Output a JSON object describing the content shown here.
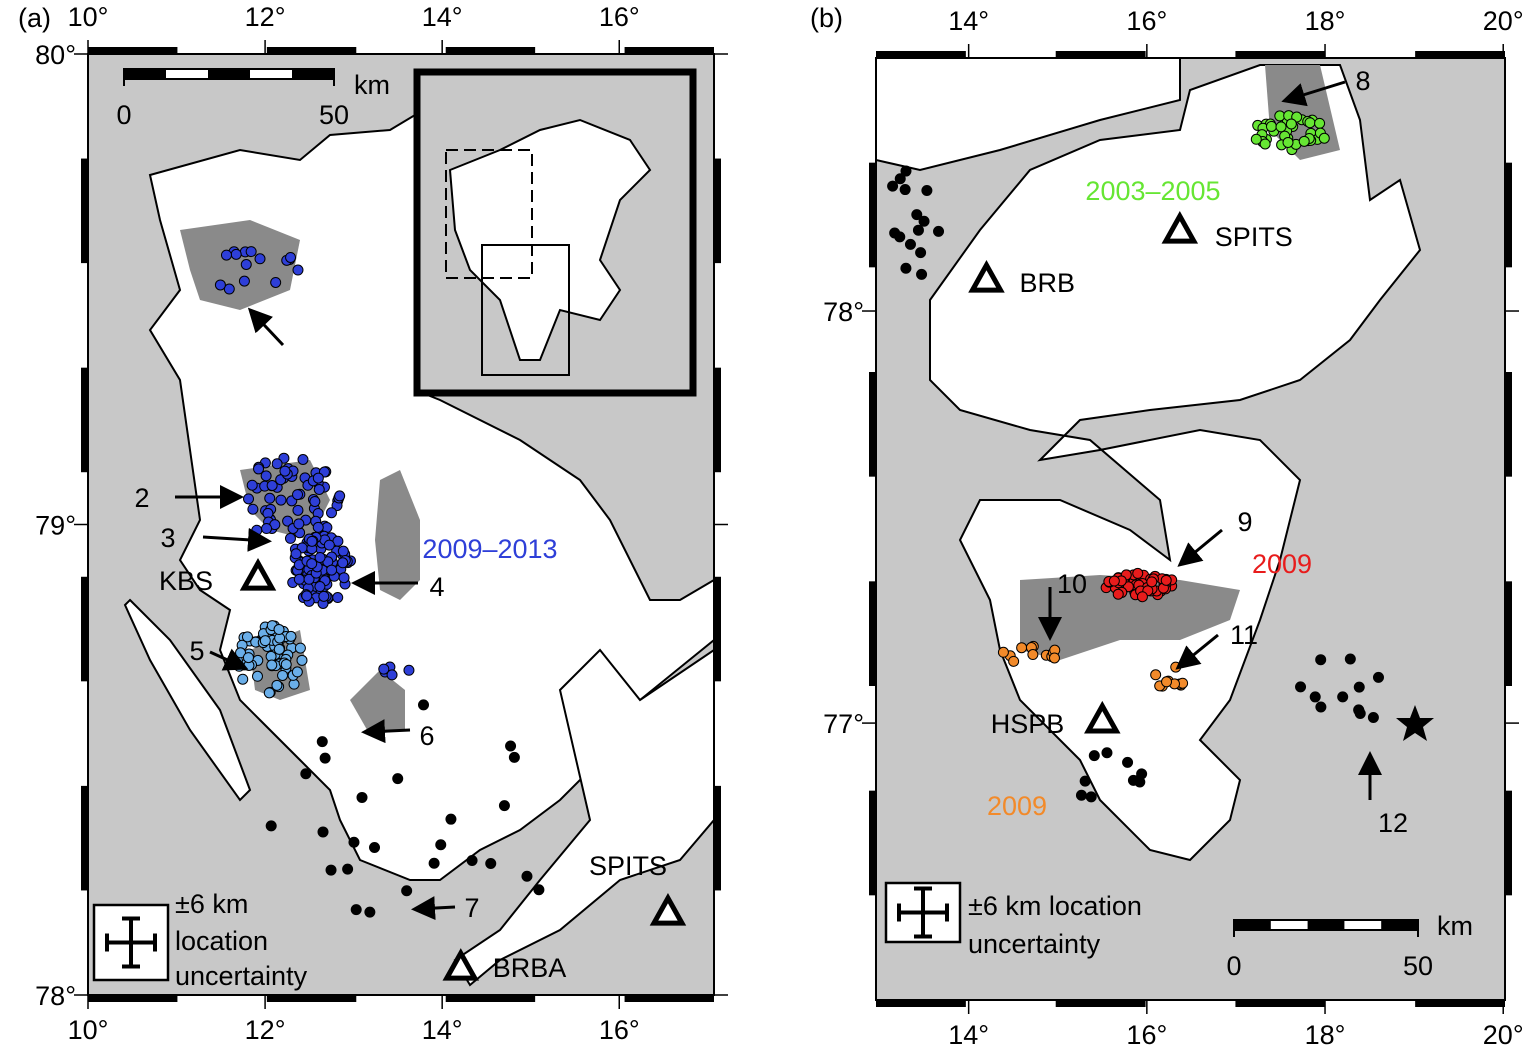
{
  "panels": [
    {
      "label": "(a)",
      "xlim": [
        10,
        17.07
      ],
      "ylim": [
        78,
        80
      ],
      "xticks": [
        {
          "value": 10,
          "label": "10°"
        },
        {
          "value": 12,
          "label": "12°"
        },
        {
          "value": 14,
          "label": "14°"
        },
        {
          "value": 16,
          "label": "16°"
        }
      ],
      "yticks": [
        {
          "value": 78,
          "label": "78°"
        },
        {
          "value": 79,
          "label": "79°"
        },
        {
          "value": 80,
          "label": "80°"
        }
      ],
      "scale_bar": {
        "unit": "km",
        "ticks": [
          0,
          50
        ]
      },
      "uncertainty_legend": [
        "±6 km",
        "location",
        "uncertainty"
      ],
      "stations": [
        {
          "name": "KBS",
          "lon": 11.92,
          "lat": 78.886
        },
        {
          "name": "SPITS",
          "lon": 16.55,
          "lat": 78.174
        },
        {
          "name": "BRBA",
          "lon": 14.21,
          "lat": 78.057
        }
      ],
      "annotations": [
        "2",
        "3",
        "4",
        "5",
        "6",
        "7"
      ],
      "event_groups": [
        {
          "label": "2009–2013",
          "color": "#2e3fd8"
        }
      ]
    },
    {
      "label": "(b)",
      "xlim": [
        12.96,
        20.02
      ],
      "ylim": [
        76.328,
        78.614
      ],
      "xticks": [
        {
          "value": 14,
          "label": "14°"
        },
        {
          "value": 16,
          "label": "16°"
        },
        {
          "value": 18,
          "label": "18°"
        },
        {
          "value": 20,
          "label": "20°"
        }
      ],
      "yticks": [
        {
          "value": 77,
          "label": "77°"
        },
        {
          "value": 78,
          "label": "78°"
        }
      ],
      "scale_bar": {
        "unit": "km",
        "ticks": [
          0,
          50
        ]
      },
      "uncertainty_legend": [
        "±6 km location",
        "uncertainty"
      ],
      "stations": [
        {
          "name": "SPITS",
          "lon": 16.37,
          "lat": 78.194
        },
        {
          "name": "BRB",
          "lon": 14.2,
          "lat": 78.075
        },
        {
          "name": "HSPB",
          "lon": 15.5,
          "lat": 77.005
        }
      ],
      "annotations": [
        "8",
        "9",
        "10",
        "11",
        "12"
      ],
      "event_groups": [
        {
          "label": "2003–2005",
          "color": "#66e633"
        },
        {
          "label": "2009",
          "color": "#e81c1c"
        },
        {
          "label": "2009",
          "color": "#f28a2a"
        }
      ]
    }
  ]
}
